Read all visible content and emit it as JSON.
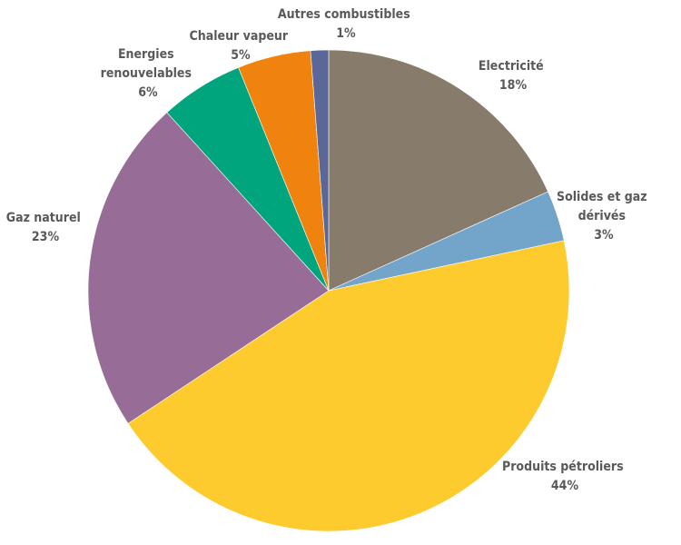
{
  "chart_data": {
    "type": "pie",
    "title": "",
    "start_angle_deg": 0,
    "direction": "clockwise",
    "legend": "none",
    "slices": [
      {
        "label": "Electricité",
        "value_label": "18%",
        "value": 18.2,
        "color": "#877c6b"
      },
      {
        "label": "Solides et gaz dérivés",
        "value_label": "3%",
        "value": 3.4,
        "color": "#73a4c9"
      },
      {
        "label": "Produits pétroliers",
        "value_label": "44%",
        "value": 43.9,
        "color": "#fecb2f"
      },
      {
        "label": "Gaz naturel",
        "value_label": "23%",
        "value": 22.5,
        "color": "#976d98"
      },
      {
        "label": "Energies renouvelables",
        "value_label": "6%",
        "value": 5.6,
        "color": "#00a47d"
      },
      {
        "label": "Chaleur vapeur",
        "value_label": "5%",
        "value": 4.9,
        "color": "#ef830d"
      },
      {
        "label": "Autres combustibles",
        "value_label": "1%",
        "value": 1.2,
        "color": "#5b6796"
      }
    ]
  }
}
